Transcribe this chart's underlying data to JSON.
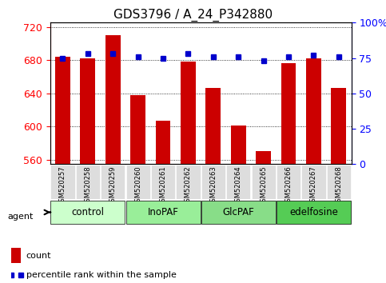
{
  "title": "GDS3796 / A_24_P342880",
  "categories": [
    "GSM520257",
    "GSM520258",
    "GSM520259",
    "GSM520260",
    "GSM520261",
    "GSM520262",
    "GSM520263",
    "GSM520264",
    "GSM520265",
    "GSM520266",
    "GSM520267",
    "GSM520268"
  ],
  "bar_values": [
    684,
    682,
    710,
    638,
    607,
    678,
    647,
    601,
    571,
    676,
    682,
    647
  ],
  "percentile_values": [
    75,
    78,
    78,
    76,
    75,
    78,
    76,
    76,
    73,
    76,
    77,
    76
  ],
  "bar_color": "#cc0000",
  "percentile_color": "#0000cc",
  "ylim_left": [
    555,
    725
  ],
  "ylim_right": [
    0,
    100
  ],
  "yticks_left": [
    560,
    600,
    640,
    680,
    720
  ],
  "yticks_right": [
    0,
    25,
    50,
    75,
    100
  ],
  "groups": [
    {
      "label": "control",
      "start": 0,
      "end": 3,
      "color": "#ccffcc"
    },
    {
      "label": "InoPAF",
      "start": 3,
      "end": 6,
      "color": "#99ee99"
    },
    {
      "label": "GlcPAF",
      "start": 6,
      "end": 9,
      "color": "#88dd88"
    },
    {
      "label": "edelfosine",
      "start": 9,
      "end": 12,
      "color": "#55cc55"
    }
  ],
  "agent_label": "agent",
  "legend_count_label": "count",
  "legend_percentile_label": "percentile rank within the sample",
  "background_color": "#ffffff",
  "plot_bg_color": "#ffffff",
  "gridline_color": "#000000",
  "tick_label_bg": "#dddddd",
  "title_fontsize": 11,
  "axis_fontsize": 9,
  "label_fontsize": 8
}
